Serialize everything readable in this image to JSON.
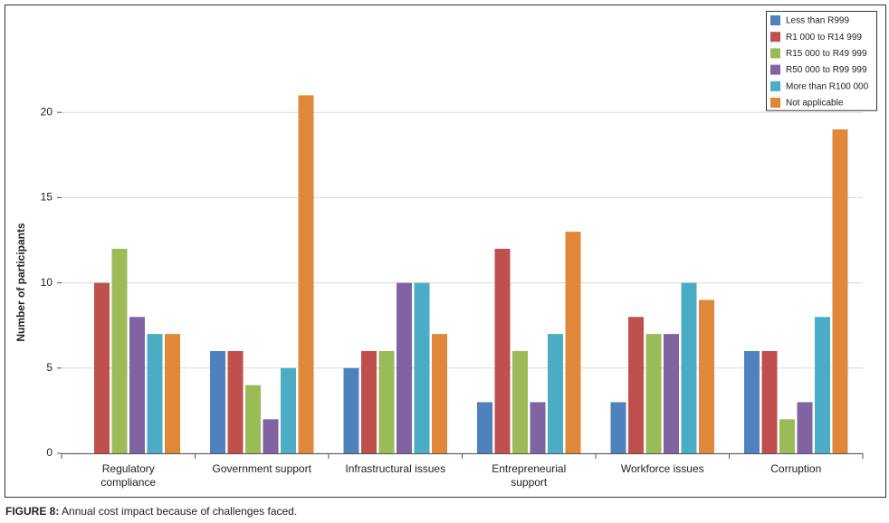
{
  "chart_data": {
    "type": "bar",
    "ylabel": "Number of participants",
    "categories": [
      "Regulatory compliance",
      "Government support",
      "Infrastructural issues",
      "Entrepreneurial support",
      "Workforce issues",
      "Corruption"
    ],
    "series": [
      {
        "name": "Less than R999",
        "color": "#4f81bd",
        "values": [
          0,
          6,
          5,
          3,
          3,
          6
        ]
      },
      {
        "name": "R1 000 to R14 999",
        "color": "#c0504d",
        "values": [
          10,
          6,
          6,
          12,
          8,
          6
        ]
      },
      {
        "name": "R15 000 to R49 999",
        "color": "#9bbb59",
        "values": [
          12,
          4,
          6,
          6,
          7,
          2
        ]
      },
      {
        "name": "R50 000 to R99 999",
        "color": "#8064a2",
        "values": [
          8,
          2,
          10,
          3,
          7,
          3
        ]
      },
      {
        "name": "More than R100 000",
        "color": "#4bacc6",
        "values": [
          7,
          5,
          10,
          7,
          10,
          8
        ]
      },
      {
        "name": "Not applicable",
        "color": "#e0883a",
        "values": [
          7,
          21,
          7,
          13,
          9,
          19
        ]
      }
    ],
    "ylim": [
      0,
      25
    ],
    "yticks": [
      0,
      5,
      10,
      15,
      20
    ],
    "grid": true,
    "legend": "top-right"
  },
  "caption": {
    "label": "FIGURE 8:",
    "text": "Annual cost impact because of challenges faced."
  }
}
